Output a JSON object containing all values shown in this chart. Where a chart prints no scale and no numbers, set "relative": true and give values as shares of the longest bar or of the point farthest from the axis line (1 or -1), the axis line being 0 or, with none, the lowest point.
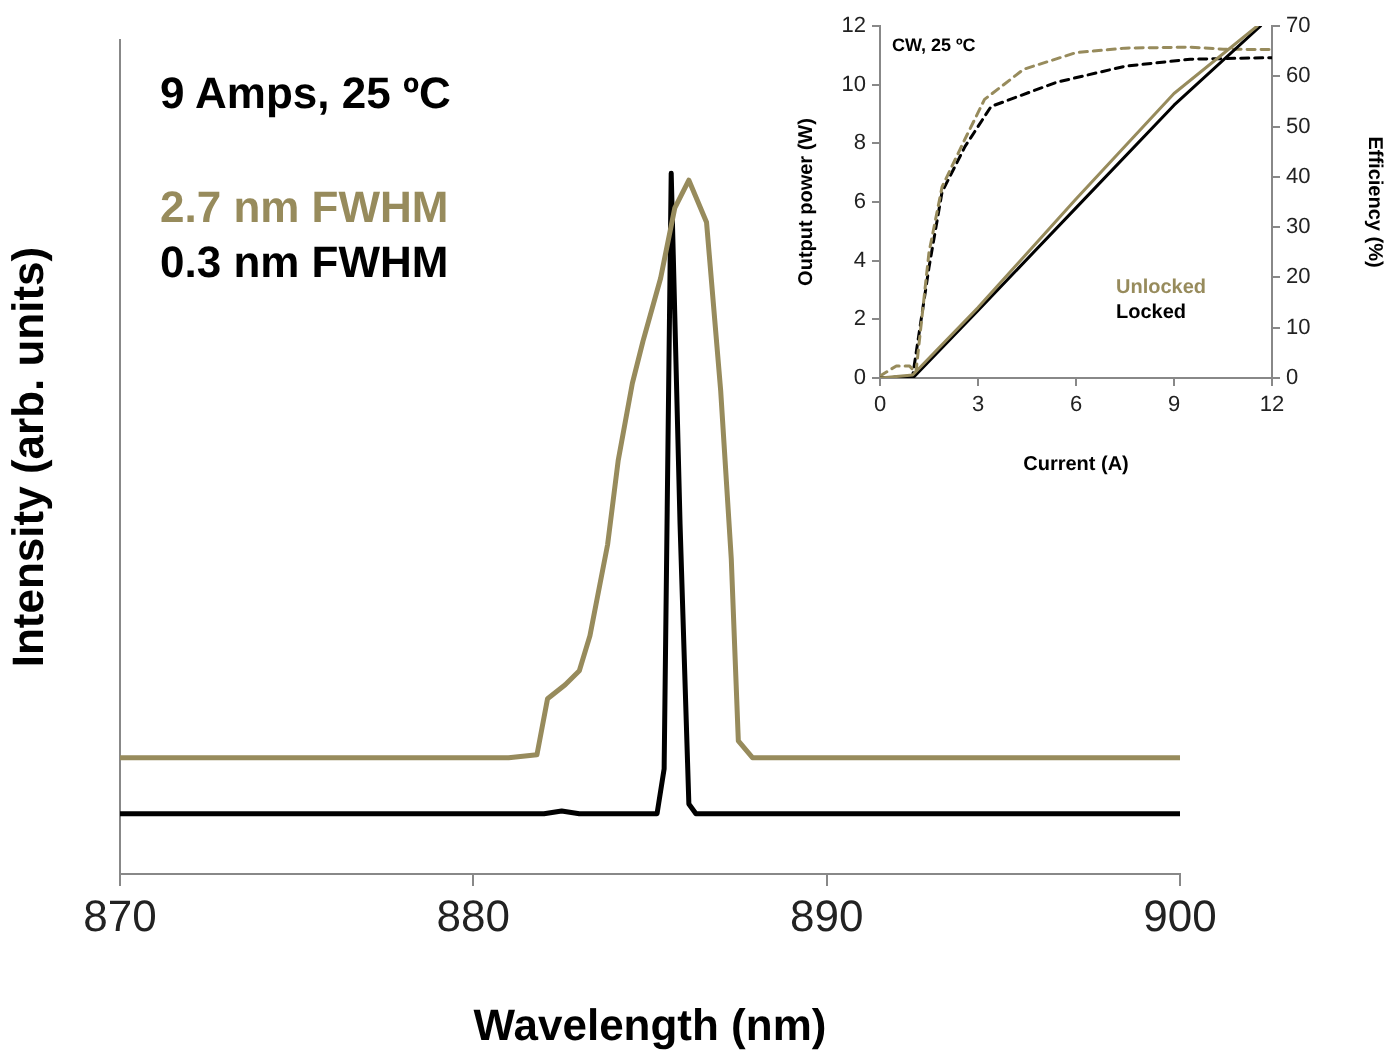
{
  "chart_data": [
    {
      "type": "line",
      "xlabel": "Wavelength (nm)",
      "ylabel": "Intensity (arb. units)",
      "annotations": [
        "9 Amps, 25 ºC"
      ],
      "relative": true,
      "xlim": [
        870,
        900
      ],
      "xticks": [
        870,
        880,
        890,
        900
      ],
      "grid": false,
      "legend": "top left",
      "marker": "none",
      "line_style": "solid",
      "series": [
        {
          "name": "2.7 nm FWHM",
          "color": "#978b5c",
          "x": [
            870,
            871,
            872,
            873,
            874,
            875,
            876,
            877,
            878,
            879,
            880,
            881,
            881.8,
            882.1,
            882.6,
            883.0,
            883.3,
            883.8,
            884.1,
            884.5,
            884.8,
            885.3,
            885.7,
            886.1,
            886.6,
            887.0,
            887.3,
            887.5,
            887.9,
            889,
            890,
            892,
            894,
            896,
            898,
            900
          ],
          "values": [
            0.166,
            0.166,
            0.166,
            0.166,
            0.166,
            0.166,
            0.166,
            0.166,
            0.166,
            0.166,
            0.166,
            0.166,
            0.17,
            0.25,
            0.27,
            0.29,
            0.34,
            0.47,
            0.59,
            0.7,
            0.76,
            0.85,
            0.95,
            0.99,
            0.93,
            0.69,
            0.45,
            0.19,
            0.166,
            0.166,
            0.166,
            0.166,
            0.166,
            0.166,
            0.166,
            0.166
          ]
        },
        {
          "name": "0.3 nm FWHM",
          "color": "#000000",
          "x": [
            870,
            882,
            882.5,
            883,
            885.2,
            885.4,
            885.6,
            885.85,
            886.1,
            886.3,
            900
          ],
          "values": [
            0.086,
            0.086,
            0.09,
            0.086,
            0.086,
            0.15,
            1,
            0.5,
            0.1,
            0.086,
            0.086
          ]
        }
      ]
    },
    {
      "type": "line",
      "xlabel": "Current (A)",
      "ylabel": "Output power (W)",
      "y2label": "Efficiency (%)",
      "annotations": [
        "CW, 25 ºC"
      ],
      "xlim": [
        0,
        12
      ],
      "xticks": [
        0,
        3,
        6,
        9,
        12
      ],
      "ylim": [
        0,
        12
      ],
      "yticks": [
        0,
        2,
        4,
        6,
        8,
        10,
        12
      ],
      "y2lim": [
        0,
        70
      ],
      "y2ticks": [
        0,
        10,
        20,
        30,
        40,
        50,
        60,
        70
      ],
      "grid": false,
      "legend": "bottom right",
      "marker": "none",
      "series": [
        {
          "name": "Unlocked",
          "color": "#978b5c",
          "line_style": "solid",
          "x": [
            0,
            1,
            3,
            6,
            9,
            11.55
          ],
          "values": [
            0,
            0.1,
            2.4,
            6.1,
            9.7,
            12
          ]
        },
        {
          "name": "Locked",
          "color": "#000000",
          "line_style": "solid",
          "x": [
            0,
            1.05,
            3,
            6,
            9,
            11.65
          ],
          "values": [
            0,
            0.05,
            2.3,
            5.8,
            9.3,
            12
          ]
        },
        {
          "color": "#978b5c",
          "line_style": "dashed",
          "axis": "y2",
          "x": [
            0,
            0.5,
            0.9,
            1.1,
            1.5,
            1.9,
            2.6,
            3.2,
            4.4,
            6,
            7.5,
            9.5,
            10.5,
            12
          ],
          "values": [
            0.4,
            2.4,
            2.4,
            1.1,
            25,
            38,
            47.5,
            55.4,
            61.4,
            64.7,
            65.6,
            65.8,
            65.4,
            65.3
          ]
        },
        {
          "color": "#000000",
          "line_style": "dashed",
          "axis": "y2",
          "x": [
            0,
            1,
            1.5,
            1.9,
            2.6,
            3.4,
            5.4,
            7.5,
            9.5,
            12
          ],
          "values": [
            0,
            0.4,
            22,
            37,
            46,
            54,
            58.8,
            62,
            63.4,
            63.7
          ]
        }
      ]
    }
  ]
}
